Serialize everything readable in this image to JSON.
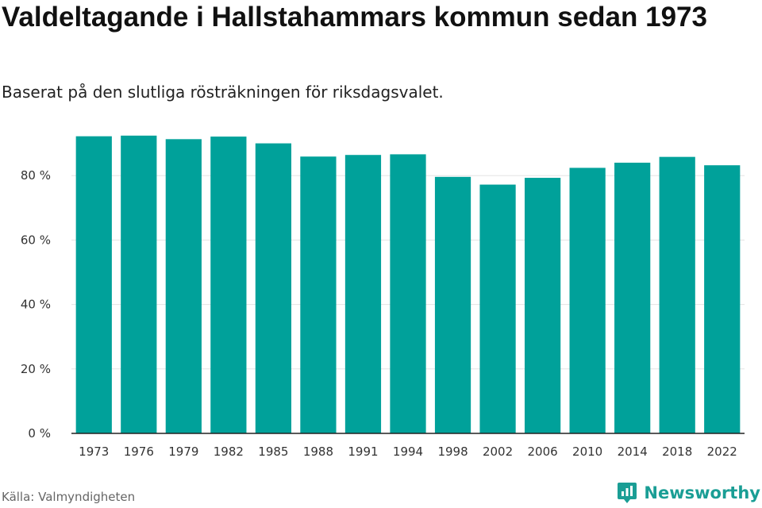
{
  "header": {
    "title": "Valdeltagande i Hallstahammars kommun sedan 1973",
    "subtitle": "Baserat på den slutliga rösträkningen för riksdagsvalet."
  },
  "footer": {
    "source": "Källa: Valmyndigheten",
    "brand": "Newsworthy",
    "brand_icon": "newsworthy-logo-icon"
  },
  "colors": {
    "bar": "#00a19a",
    "grid": "#e3e3e3",
    "axis": "#222222",
    "brand": "#1a9e95"
  },
  "chart_data": {
    "type": "bar",
    "categories": [
      "1973",
      "1976",
      "1979",
      "1982",
      "1985",
      "1988",
      "1991",
      "1994",
      "1998",
      "2002",
      "2006",
      "2010",
      "2014",
      "2018",
      "2022"
    ],
    "values": [
      92.2,
      92.4,
      91.3,
      92.1,
      90.0,
      85.9,
      86.4,
      86.6,
      79.6,
      77.2,
      79.3,
      82.4,
      84.0,
      85.8,
      83.2
    ],
    "yticks": [
      0,
      20,
      40,
      60,
      80
    ],
    "ytick_labels": [
      "0 %",
      "20 %",
      "40 %",
      "60 %",
      "80 %"
    ],
    "ylim": [
      0,
      100
    ],
    "grid": true,
    "legend": "none"
  }
}
